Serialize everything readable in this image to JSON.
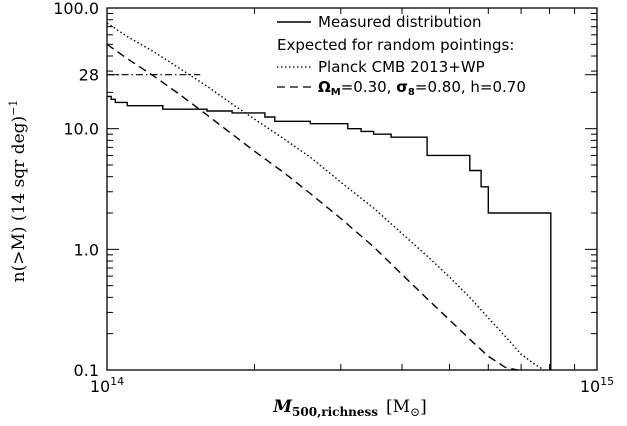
{
  "chart_data": {
    "type": "line",
    "xscale": "log",
    "yscale": "log",
    "xlim": [
      100000000000000.0,
      1000000000000000.0
    ],
    "ylim": [
      0.1,
      100
    ],
    "x_ticks": [
      {
        "value": 100000000000000.0,
        "base": "10",
        "exp": "14"
      },
      {
        "value": 1000000000000000.0,
        "base": "10",
        "exp": "15"
      }
    ],
    "y_ticks": [
      {
        "value": 100,
        "label": "100.0"
      },
      {
        "value": 28,
        "label": "28"
      },
      {
        "value": 10,
        "label": "10.0"
      },
      {
        "value": 1,
        "label": "1.0"
      },
      {
        "value": 0.1,
        "label": "0.1"
      }
    ],
    "xlabel": {
      "main": "M",
      "sub": "500,richness",
      "unit_pre": "[M",
      "unit_sub": "⊙",
      "unit_post": "]"
    },
    "ylabel": {
      "text": "n(>M) (14 sqr deg)",
      "sup": "−1"
    },
    "legend": {
      "placement": "top-right",
      "measured": "Measured distribution",
      "heading": "Expected for random pointings:",
      "planck": "Planck CMB 2013+WP",
      "cosmo": {
        "omega": "Ω",
        "omega_sub": "M",
        "omega_val": "=0.30, ",
        "sigma": "σ",
        "sigma_sub": "8",
        "sigma_val": "=0.80, h=0.70"
      }
    },
    "reference_line": {
      "y": 28,
      "x_end": 155000000000000.0,
      "style": "dash-dot"
    },
    "series": [
      {
        "name": "Measured distribution",
        "style": "solid",
        "x": [
          100000000000000.0,
          102000000000000.0,
          102000000000000.0,
          104000000000000.0,
          104000000000000.0,
          110000000000000.0,
          110000000000000.0,
          130000000000000.0,
          130000000000000.0,
          160000000000000.0,
          160000000000000.0,
          180000000000000.0,
          180000000000000.0,
          210000000000000.0,
          210000000000000.0,
          220000000000000.0,
          220000000000000.0,
          260000000000000.0,
          260000000000000.0,
          310000000000000.0,
          310000000000000.0,
          330000000000000.0,
          330000000000000.0,
          350000000000000.0,
          350000000000000.0,
          380000000000000.0,
          380000000000000.0,
          450000000000000.0,
          450000000000000.0,
          550000000000000.0,
          550000000000000.0,
          580000000000000.0,
          580000000000000.0,
          600000000000000.0,
          600000000000000.0,
          805000000000000.0,
          805000000000000.0
        ],
        "y": [
          18.5,
          18.5,
          17.5,
          17.5,
          16.5,
          16.5,
          15.5,
          15.5,
          14.5,
          14.5,
          14.0,
          14.0,
          13.5,
          13.5,
          12.5,
          12.5,
          11.5,
          11.5,
          11.0,
          11.0,
          10.0,
          10.0,
          9.5,
          9.5,
          9.0,
          9.0,
          8.5,
          8.5,
          6.0,
          6.0,
          4.5,
          4.5,
          3.3,
          3.3,
          2.0,
          2.0,
          0.1
        ]
      },
      {
        "name": "Planck CMB 2013+WP",
        "style": "dotted",
        "x": [
          100000000000000.0,
          110000000000000.0,
          125000000000000.0,
          140000000000000.0,
          160000000000000.0,
          180000000000000.0,
          200000000000000.0,
          230000000000000.0,
          260000000000000.0,
          300000000000000.0,
          350000000000000.0,
          400000000000000.0,
          450000000000000.0,
          500000000000000.0,
          550000000000000.0,
          600000000000000.0,
          650000000000000.0,
          700000000000000.0,
          750000000000000.0,
          780000000000000.0
        ],
        "y": [
          75,
          58,
          43,
          32,
          22.5,
          16,
          12,
          8.2,
          5.8,
          3.6,
          2.2,
          1.35,
          0.88,
          0.59,
          0.4,
          0.27,
          0.19,
          0.135,
          0.11,
          0.1
        ]
      },
      {
        "name": "Ω_M=0.30, σ_8=0.80, h=0.70",
        "style": "dashed",
        "x": [
          100000000000000.0,
          110000000000000.0,
          125000000000000.0,
          140000000000000.0,
          160000000000000.0,
          180000000000000.0,
          200000000000000.0,
          230000000000000.0,
          260000000000000.0,
          300000000000000.0,
          350000000000000.0,
          400000000000000.0,
          450000000000000.0,
          500000000000000.0,
          550000000000000.0,
          600000000000000.0,
          650000000000000.0,
          690000000000000.0
        ],
        "y": [
          50,
          38,
          27,
          19.5,
          13,
          9,
          6.5,
          4.3,
          2.9,
          1.8,
          1.05,
          0.62,
          0.39,
          0.26,
          0.18,
          0.13,
          0.105,
          0.1
        ]
      }
    ]
  }
}
